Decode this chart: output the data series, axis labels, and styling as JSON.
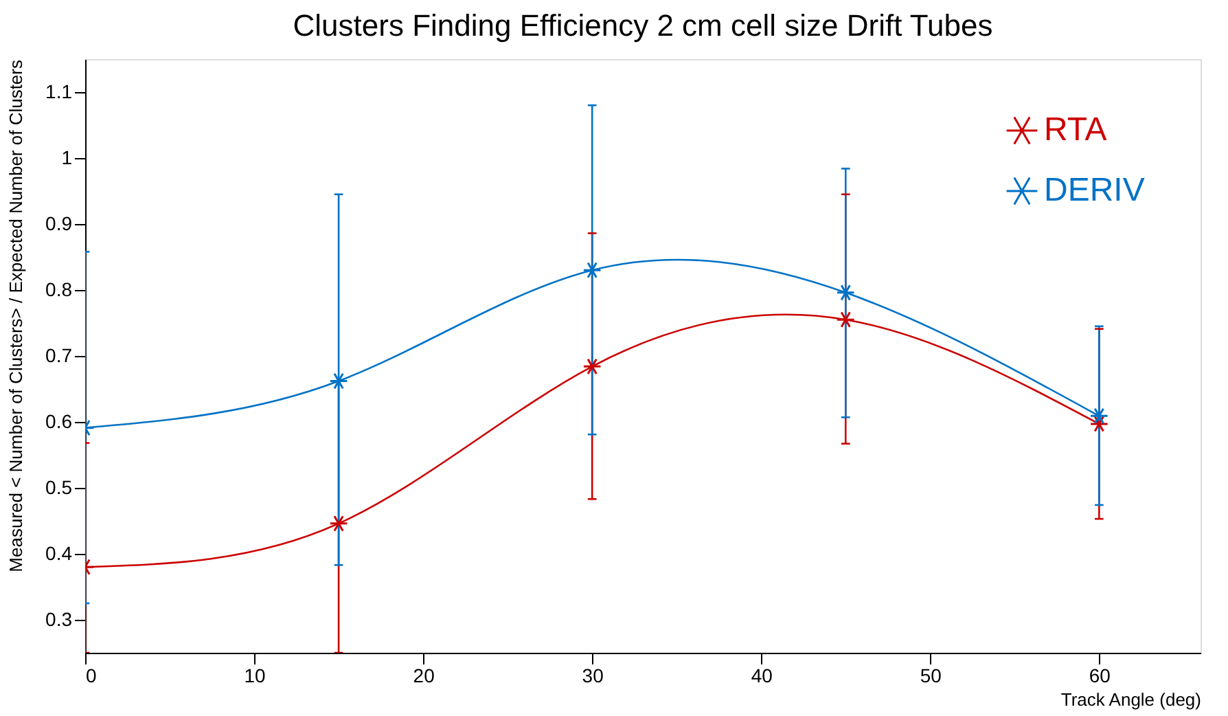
{
  "chart_data": {
    "type": "line",
    "title": "Clusters Finding Efficiency 2 cm cell size Drift Tubes",
    "xlabel": "Track Angle (deg)",
    "ylabel": "Measured < Number of Clusters> / Expected Number of Clusters",
    "x": [
      0,
      15,
      30,
      45,
      60
    ],
    "series": [
      {
        "name": "RTA",
        "color": "#cc0000",
        "values": [
          0.38,
          0.446,
          0.684,
          0.755,
          0.597
        ],
        "errors": [
          [
            0.25,
            0.568
          ],
          [
            0.25,
            0.662
          ],
          [
            0.483,
            0.886
          ],
          [
            0.567,
            0.945
          ],
          [
            0.453,
            0.741
          ]
        ]
      },
      {
        "name": "DERIV",
        "color": "#0072c6",
        "values": [
          0.591,
          0.662,
          0.83,
          0.796,
          0.609
        ],
        "errors": [
          [
            0.325,
            0.858
          ],
          [
            0.383,
            0.945
          ],
          [
            0.581,
            1.08
          ],
          [
            0.607,
            0.984
          ],
          [
            0.474,
            0.745
          ]
        ]
      }
    ],
    "xlim": [
      0,
      66
    ],
    "xticks": [
      0,
      10,
      20,
      30,
      40,
      50,
      60
    ],
    "ylim": [
      0.25,
      1.15
    ],
    "yticks": [
      0.3,
      0.4,
      0.5,
      0.6,
      0.7,
      0.8,
      0.9,
      {
        "value": 1,
        "label": "1"
      },
      1.1
    ],
    "grid": false,
    "legend": "top right",
    "marker": "cross",
    "line_style": "solid"
  }
}
